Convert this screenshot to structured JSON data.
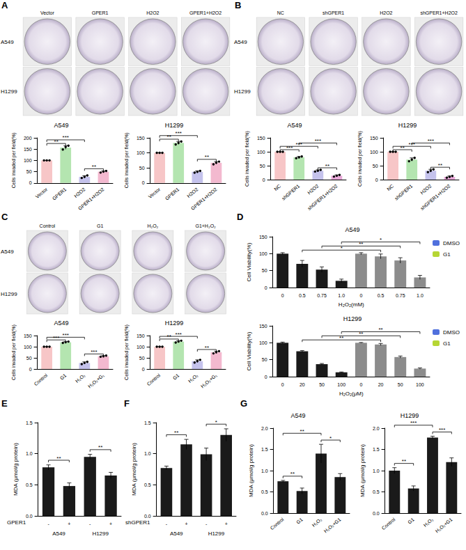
{
  "panel_letters": [
    "A",
    "B",
    "C",
    "D",
    "E",
    "F",
    "G"
  ],
  "plates": [
    {
      "columns": [
        "Vector",
        "GPER1",
        "H2O2",
        "GPER1+H2O2"
      ],
      "rows": [
        "A549",
        "H1299"
      ]
    },
    {
      "columns": [
        "NC",
        "shGPER1",
        "H2O2",
        "shGPER1+H2O2"
      ],
      "rows": [
        "A549",
        "H1299"
      ]
    },
    {
      "columns": [
        "Control",
        "G1",
        "H₂O₂",
        "G1+H₂O₂"
      ],
      "rows": [
        "A549",
        "H1299"
      ]
    }
  ],
  "chart_data": [
    {
      "type": "bar",
      "title": "A549",
      "y_label": "Cells invaded per field(%)",
      "categories": [
        "Vector",
        "GPER1",
        "H2O2",
        "GPER1+H2O2"
      ],
      "values": [
        100,
        157,
        27,
        50
      ],
      "errors": [
        0,
        8,
        5,
        3
      ],
      "points": [
        [
          100,
          100,
          100
        ],
        [
          148,
          160,
          165
        ],
        [
          22,
          27,
          33
        ],
        [
          46,
          50,
          53
        ]
      ],
      "colors": [
        "#f7c6c7",
        "#b4e5b0",
        "#c4c2ec",
        "#f3b9cf"
      ],
      "ylim": [
        0,
        200
      ],
      "yticks": [
        0,
        50,
        100,
        150,
        200
      ],
      "annotations": [
        {
          "from": 0,
          "to": 1,
          "label": "**"
        },
        {
          "from": 0,
          "to": 2,
          "label": "***"
        },
        {
          "from": 2,
          "to": 3,
          "label": "**"
        }
      ]
    },
    {
      "type": "bar",
      "title": "H1299",
      "y_label": "Cells invaded per field(%)",
      "categories": [
        "Vector",
        "GPER1",
        "H2O2",
        "GPER1+H2O2"
      ],
      "values": [
        100,
        133,
        37,
        67
      ],
      "errors": [
        0,
        5,
        3,
        4
      ],
      "points": [
        [
          100,
          100,
          100
        ],
        [
          128,
          133,
          138
        ],
        [
          34,
          37,
          40
        ],
        [
          62,
          67,
          71
        ]
      ],
      "colors": [
        "#f7c6c7",
        "#b4e5b0",
        "#c4c2ec",
        "#f3b9cf"
      ],
      "ylim": [
        0,
        150
      ],
      "yticks": [
        0,
        50,
        100,
        150
      ],
      "annotations": [
        {
          "from": 0,
          "to": 1,
          "label": "**"
        },
        {
          "from": 0,
          "to": 2,
          "label": "***"
        },
        {
          "from": 2,
          "to": 3,
          "label": "**"
        }
      ]
    },
    {
      "type": "bar",
      "title": "A549",
      "y_label": "Cells invaded per field(%)",
      "categories": [
        "NC",
        "shGPER1",
        "H2O2",
        "shGPER1+H2O2"
      ],
      "values": [
        100,
        80,
        32,
        14
      ],
      "errors": [
        0,
        3,
        3,
        3
      ],
      "points": [
        [
          100,
          100,
          100
        ],
        [
          77,
          80,
          83
        ],
        [
          29,
          32,
          35
        ],
        [
          11,
          14,
          17
        ]
      ],
      "colors": [
        "#f7c6c7",
        "#b4e5b0",
        "#c4c2ec",
        "#e8a8d8"
      ],
      "ylim": [
        0,
        150
      ],
      "yticks": [
        0,
        50,
        100,
        150
      ],
      "annotations": [
        {
          "from": 0,
          "to": 1,
          "label": "***"
        },
        {
          "from": 0,
          "to": 2,
          "label": "***"
        },
        {
          "from": 1,
          "to": 3,
          "label": "***"
        },
        {
          "from": 2,
          "to": 3,
          "label": "**"
        }
      ]
    },
    {
      "type": "bar",
      "title": "H1299",
      "y_label": "Cells invaded per field(%)",
      "categories": [
        "NC",
        "shGPER1",
        "H2O2",
        "shGPER1+H2O2"
      ],
      "values": [
        100,
        72,
        32,
        10
      ],
      "errors": [
        0,
        6,
        5,
        3
      ],
      "points": [
        [
          100,
          100,
          100
        ],
        [
          66,
          72,
          78
        ],
        [
          27,
          32,
          37
        ],
        [
          7,
          10,
          13
        ]
      ],
      "colors": [
        "#f7c6c7",
        "#b4e5b0",
        "#c4c2ec",
        "#e8a8d8"
      ],
      "ylim": [
        0,
        150
      ],
      "yticks": [
        0,
        50,
        100,
        150
      ],
      "annotations": [
        {
          "from": 0,
          "to": 1,
          "label": "**"
        },
        {
          "from": 0,
          "to": 2,
          "label": "***"
        },
        {
          "from": 1,
          "to": 3,
          "label": "***"
        },
        {
          "from": 2,
          "to": 3,
          "label": "**"
        }
      ]
    },
    {
      "type": "bar",
      "title": "A549",
      "y_label": "Cells invaded per field(%)",
      "categories": [
        "Control",
        "G1",
        "H₂O₂",
        "H₂O₂+G₁"
      ],
      "values": [
        100,
        120,
        27,
        57
      ],
      "errors": [
        0,
        3,
        5,
        3
      ],
      "points": [
        [
          100,
          100,
          100
        ],
        [
          117,
          120,
          123
        ],
        [
          22,
          27,
          32
        ],
        [
          55,
          57,
          60
        ]
      ],
      "colors": [
        "#f7c6c7",
        "#b4e5b0",
        "#c4c2ec",
        "#f3b9cf"
      ],
      "ylim": [
        0,
        150
      ],
      "yticks": [
        0,
        50,
        100,
        150
      ],
      "annotations": [
        {
          "from": 0,
          "to": 1,
          "label": "***"
        },
        {
          "from": 0,
          "to": 2,
          "label": "***"
        },
        {
          "from": 2,
          "to": 3,
          "label": "***"
        }
      ]
    },
    {
      "type": "bar",
      "title": "H1299",
      "y_label": "Cells invaded per field(%)",
      "categories": [
        "Control",
        "G1",
        "H₂O₂",
        "H₂O₂+G₁"
      ],
      "values": [
        100,
        123,
        35,
        75
      ],
      "errors": [
        0,
        4,
        6,
        5
      ],
      "points": [
        [
          100,
          100,
          100
        ],
        [
          119,
          123,
          127
        ],
        [
          29,
          35,
          41
        ],
        [
          70,
          75,
          80
        ]
      ],
      "colors": [
        "#f7c6c7",
        "#b4e5b0",
        "#c4c2ec",
        "#f3b9cf"
      ],
      "ylim": [
        0,
        150
      ],
      "yticks": [
        0,
        50,
        100,
        150
      ],
      "annotations": [
        {
          "from": 0,
          "to": 1,
          "label": "**"
        },
        {
          "from": 0,
          "to": 2,
          "label": "***"
        },
        {
          "from": 2,
          "to": 3,
          "label": "**"
        }
      ]
    },
    {
      "type": "bar",
      "title": "A549",
      "y_label": "Cell Viability(%)",
      "x_label": "H₂O₂(mM)",
      "categories": [
        "0",
        "0.5",
        "0.75",
        "1.0",
        "0",
        "0.5",
        "0.75",
        "1.0"
      ],
      "series": [
        {
          "name": "DMSO",
          "color": "#1a1a1a",
          "values": [
            100,
            70,
            53,
            20,
            null,
            null,
            null,
            null
          ],
          "errors": [
            3,
            10,
            8,
            5,
            null,
            null,
            null,
            null
          ]
        },
        {
          "name": "G1",
          "color": "#8c8c8c",
          "values": [
            null,
            null,
            null,
            null,
            100,
            92,
            80,
            30
          ],
          "errors": [
            null,
            null,
            null,
            null,
            3,
            7,
            8,
            6
          ]
        }
      ],
      "legend": "upper right",
      "ylim": [
        0,
        150
      ],
      "yticks": [
        0,
        50,
        100,
        150
      ],
      "annotations": [
        {
          "from": 1,
          "to": 5,
          "label": "*"
        },
        {
          "from": 2,
          "to": 6,
          "label": "**"
        },
        {
          "from": 3,
          "to": 7,
          "label": "*"
        }
      ]
    },
    {
      "type": "bar",
      "title": "H1299",
      "y_label": "Cell Viability(%)",
      "x_label": "H₂O₂(μM)",
      "categories": [
        "0",
        "20",
        "50",
        "100",
        "0",
        "20",
        "50",
        "100"
      ],
      "series": [
        {
          "name": "DMSO",
          "color": "#1a1a1a",
          "values": [
            100,
            75,
            37,
            13,
            null,
            null,
            null,
            null
          ],
          "errors": [
            2,
            2,
            2,
            1,
            null,
            null,
            null,
            null
          ]
        },
        {
          "name": "G1",
          "color": "#8c8c8c",
          "values": [
            null,
            null,
            null,
            null,
            100,
            95,
            58,
            24
          ],
          "errors": [
            null,
            null,
            null,
            null,
            1,
            3,
            3,
            2
          ]
        }
      ],
      "legend": "upper right",
      "ylim": [
        0,
        150
      ],
      "yticks": [
        0,
        50,
        100,
        150
      ],
      "annotations": [
        {
          "from": 1,
          "to": 5,
          "label": "**"
        },
        {
          "from": 2,
          "to": 6,
          "label": "**"
        },
        {
          "from": 3,
          "to": 7,
          "label": "**"
        }
      ]
    },
    {
      "type": "bar",
      "y_label": "MDA (μmol/g protein)",
      "categories": [
        "-",
        "+",
        "-",
        "+"
      ],
      "groups": [
        "A549",
        "H1299"
      ],
      "factor_label": "GPER1",
      "values": [
        0.78,
        0.48,
        0.95,
        0.65
      ],
      "errors": [
        0.04,
        0.05,
        0.04,
        0.05
      ],
      "color": "#1a1a1a",
      "ylim": [
        0,
        1.5
      ],
      "yticks": [
        {
          "value": 0,
          "label": "0.0"
        },
        0.5,
        {
          "value": 1,
          "label": "1.0"
        },
        1.5
      ],
      "annotations": [
        {
          "from": 0,
          "to": 1,
          "label": "**"
        },
        {
          "from": 2,
          "to": 3,
          "label": "**"
        }
      ]
    },
    {
      "type": "bar",
      "y_label": "MDA (μmol/g protein)",
      "categories": [
        "-",
        "+",
        "-",
        "+"
      ],
      "groups": [
        "A549",
        "H1299"
      ],
      "factor_label": "shGPER1",
      "values": [
        0.77,
        1.15,
        0.99,
        1.3
      ],
      "errors": [
        0.03,
        0.08,
        0.1,
        0.1
      ],
      "color": "#1a1a1a",
      "ylim": [
        0,
        1.5
      ],
      "yticks": [
        {
          "value": 0,
          "label": "0.0"
        },
        0.5,
        {
          "value": 1,
          "label": "1.0"
        },
        1.5
      ],
      "annotations": [
        {
          "from": 0,
          "to": 1,
          "label": "**"
        },
        {
          "from": 2,
          "to": 3,
          "label": "*"
        }
      ]
    },
    {
      "type": "bar",
      "title": "A549",
      "y_label": "MDA (μmol/g protein)",
      "categories": [
        "Control",
        "G1",
        "H₂O₂",
        "H₂O₂+G1"
      ],
      "values": [
        0.75,
        0.52,
        1.4,
        0.85
      ],
      "errors": [
        0.02,
        0.07,
        0.22,
        0.08
      ],
      "color": "#1a1a1a",
      "ylim": [
        0,
        2
      ],
      "yticks": [
        {
          "value": 0,
          "label": "0.0"
        },
        0.5,
        {
          "value": 1,
          "label": "1.0"
        },
        1.5,
        {
          "value": 2,
          "label": "2.0"
        }
      ],
      "annotations": [
        {
          "from": 0,
          "to": 1,
          "label": "**"
        },
        {
          "from": 0,
          "to": 2,
          "label": "**"
        },
        {
          "from": 2,
          "to": 3,
          "label": "*"
        }
      ]
    },
    {
      "type": "bar",
      "title": "H1299",
      "y_label": "MDA (μmol/g protein)",
      "categories": [
        "Control",
        "G1",
        "H₂O₂",
        "H₂O₂+G1"
      ],
      "values": [
        1.0,
        0.58,
        1.78,
        1.2
      ],
      "errors": [
        0.07,
        0.06,
        0.03,
        0.1
      ],
      "color": "#1a1a1a",
      "ylim": [
        0,
        2
      ],
      "yticks": [
        {
          "value": 0,
          "label": "0.0"
        },
        0.5,
        {
          "value": 1,
          "label": "1.0"
        },
        1.5,
        {
          "value": 2,
          "label": "2.0"
        }
      ],
      "annotations": [
        {
          "from": 0,
          "to": 1,
          "label": "**"
        },
        {
          "from": 0,
          "to": 2,
          "label": "***"
        },
        {
          "from": 2,
          "to": 3,
          "label": "***"
        }
      ]
    }
  ]
}
